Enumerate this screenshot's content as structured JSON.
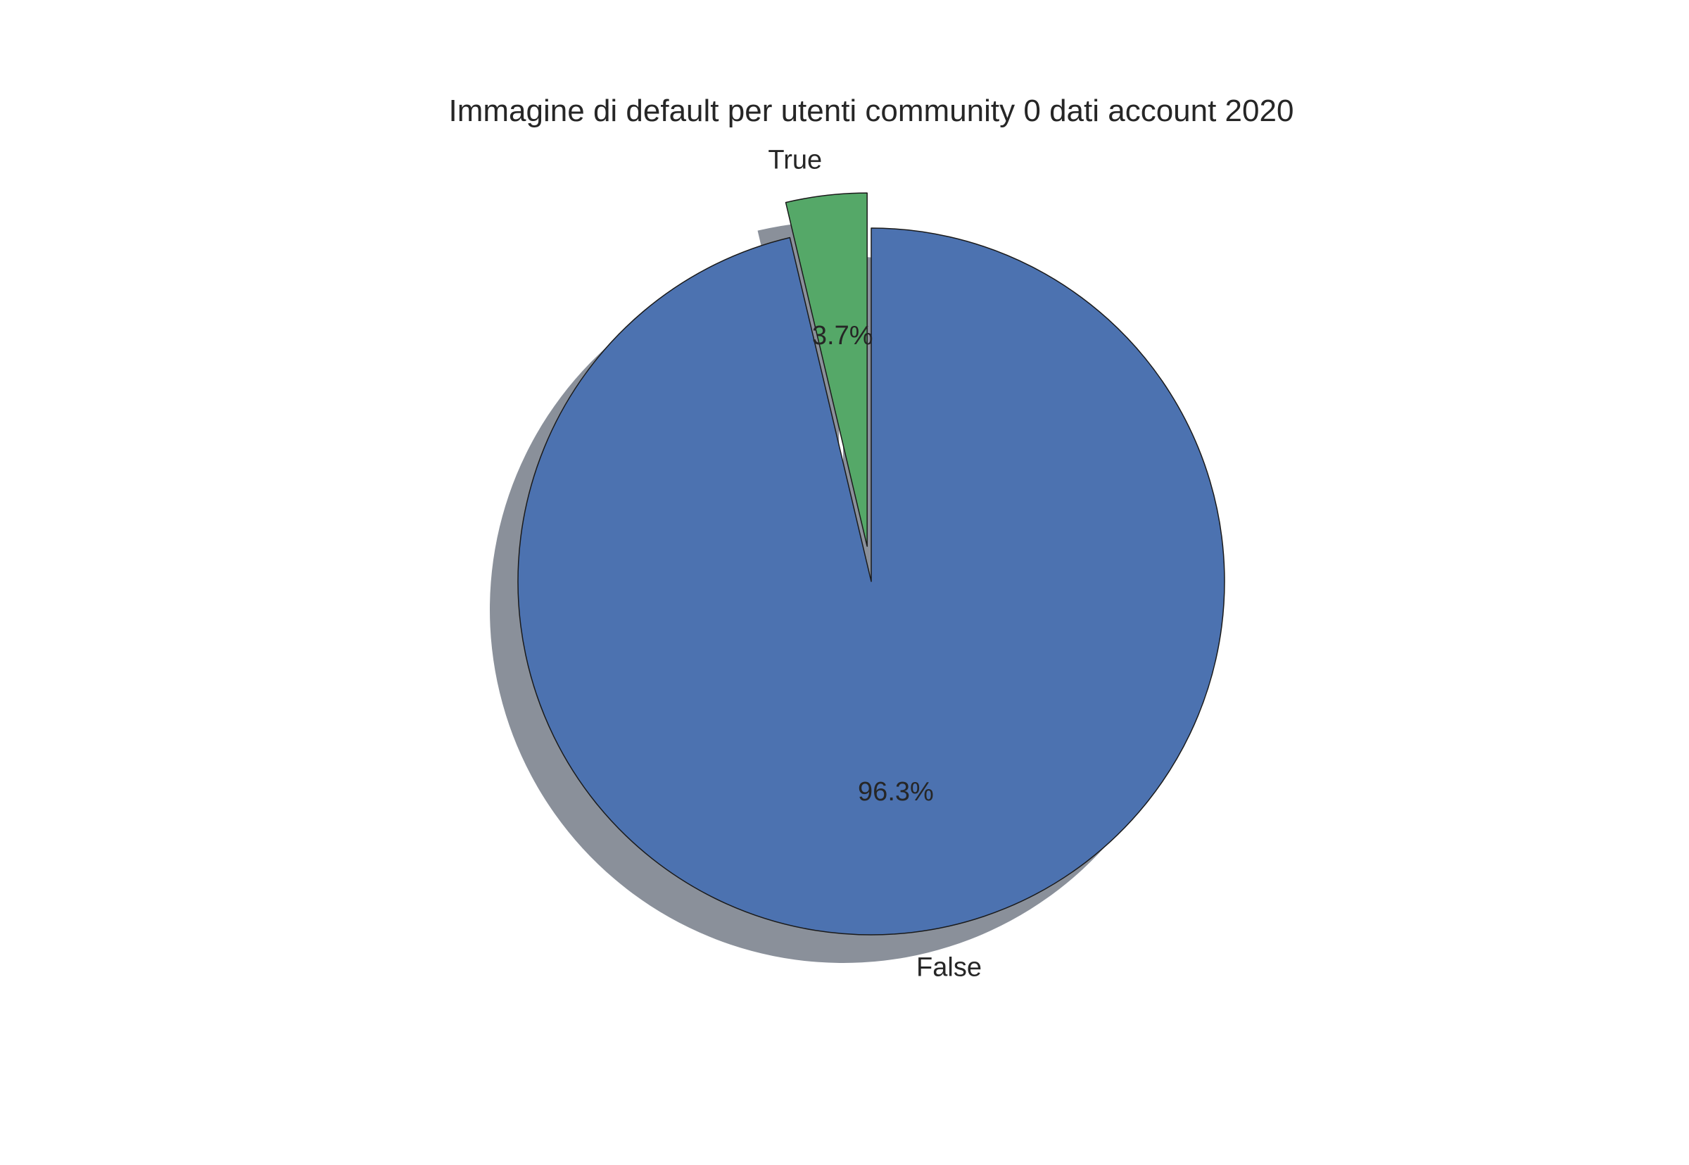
{
  "chart_data": {
    "type": "pie",
    "title": "Immagine di default per utenti community 0 dati account 2020",
    "start_angle_deg": 90,
    "counterclockwise": false,
    "shadow": true,
    "slices": [
      {
        "label": "False",
        "value": 96.3,
        "pct_label": "96.3%",
        "color": "#4c72b0",
        "explode": 0
      },
      {
        "label": "True",
        "value": 3.7,
        "pct_label": "3.7%",
        "color": "#55a868",
        "explode": 0.1
      }
    ]
  },
  "colors": {
    "shadow": "#8a909a",
    "edge": "#1a1a1a",
    "background": "#ffffff"
  }
}
